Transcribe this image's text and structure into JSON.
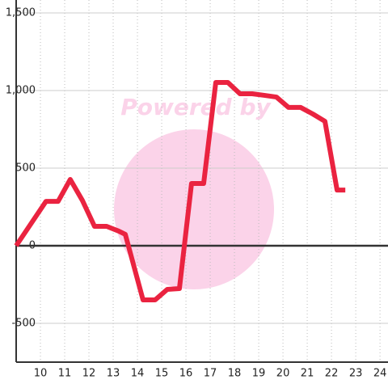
{
  "chart_data": {
    "type": "line",
    "watermark": "Powered by",
    "x": [
      9,
      10.23,
      10.73,
      11.23,
      11.73,
      12.23,
      12.73,
      13.23,
      13.5,
      14.23,
      14.73,
      15.23,
      15.73,
      16.23,
      16.73,
      17.23,
      17.73,
      18.23,
      18.73,
      19.23,
      19.73,
      20.23,
      20.73,
      21.23,
      21.73,
      22.23,
      22.57
    ],
    "series": [
      {
        "color": "#ea2340",
        "values": [
          0,
          286,
          286,
          427,
          292,
          125,
          125,
          94,
          73,
          -349,
          -349,
          -281,
          -276,
          401,
          401,
          1052,
          1052,
          979,
          979,
          969,
          958,
          891,
          891,
          849,
          802,
          359,
          359
        ]
      }
    ],
    "xlim": [
      9,
      24.33
    ],
    "xticks": [
      10,
      11,
      12,
      13,
      14,
      15,
      16,
      17,
      18,
      19,
      20,
      21,
      22,
      23,
      24
    ],
    "ylim": [
      -750,
      1500
    ],
    "yticks": [
      {
        "value": 1500,
        "label": "1,500"
      },
      {
        "value": 1000,
        "label": "1,000"
      },
      500,
      0,
      -500
    ],
    "grid": true
  }
}
